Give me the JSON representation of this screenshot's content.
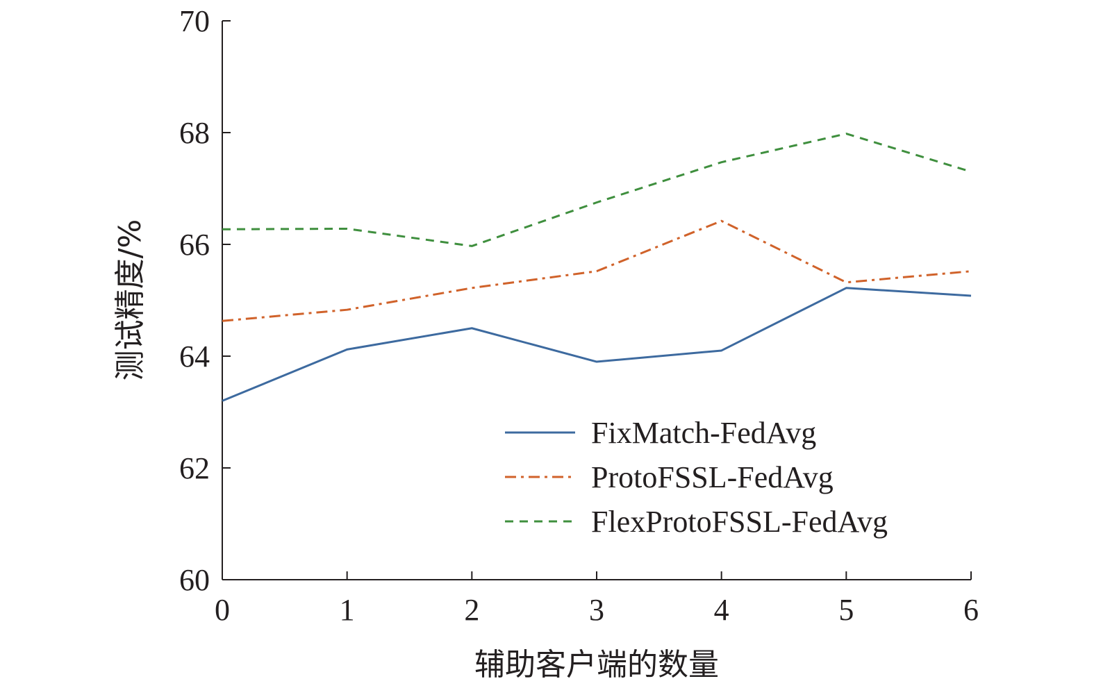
{
  "chart_data": {
    "type": "line",
    "title": "",
    "xlabel": "辅助客户端的数量",
    "ylabel": "测试精度/%",
    "x": [
      0,
      1,
      2,
      3,
      4,
      5,
      6
    ],
    "xlim": [
      0,
      6
    ],
    "ylim": [
      60,
      70
    ],
    "xticks": [
      "0",
      "1",
      "2",
      "3",
      "4",
      "5",
      "6"
    ],
    "yticks": [
      "60",
      "62",
      "64",
      "66",
      "68",
      "70"
    ],
    "grid": false,
    "legend_position": "bottom-right",
    "series": [
      {
        "name": "FixMatch-FedAvg",
        "color": "#3d6a9f",
        "style": "solid",
        "values": [
          63.2,
          64.12,
          64.5,
          63.9,
          64.1,
          65.22,
          65.08
        ]
      },
      {
        "name": "ProtoFSSL-FedAvg",
        "color": "#d0622a",
        "style": "dashdot",
        "values": [
          64.63,
          64.83,
          65.22,
          65.52,
          66.42,
          65.32,
          65.52
        ]
      },
      {
        "name": "FlexProtoFSSL-FedAvg",
        "color": "#3f8f3e",
        "style": "dashed",
        "values": [
          66.27,
          66.28,
          65.97,
          66.75,
          67.47,
          67.98,
          67.3
        ]
      }
    ]
  }
}
